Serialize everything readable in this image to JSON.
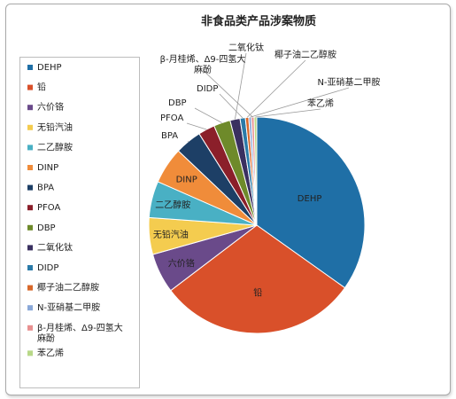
{
  "chart_data": {
    "type": "pie",
    "title": "非食品类产品涉案物质",
    "legend_position": "left",
    "categories": [
      "DEHP",
      "铅",
      "六价铬",
      "无铅汽油",
      "二乙醇胺",
      "DINP",
      "BPA",
      "PFOA",
      "DBP",
      "二氧化钛",
      "DIDP",
      "椰子油二乙醇胺",
      "N-亚硝基二甲胺",
      "β-月桂烯、Δ9-四氢大麻酚",
      "苯乙烯"
    ],
    "values": [
      35,
      30,
      6,
      5.5,
      5.5,
      5.5,
      4,
      2.5,
      2.5,
      1.5,
      0.8,
      0.5,
      0.4,
      0.4,
      0.4
    ],
    "colors": [
      "#1f6fa6",
      "#d9502a",
      "#6a4a8a",
      "#f4cc4f",
      "#49b0c4",
      "#f08c3a",
      "#1d3f66",
      "#8b1f2a",
      "#6e8a2a",
      "#3a3060",
      "#2a7aa8",
      "#d8682a",
      "#8aa8d8",
      "#e89090",
      "#b8d888"
    ]
  }
}
